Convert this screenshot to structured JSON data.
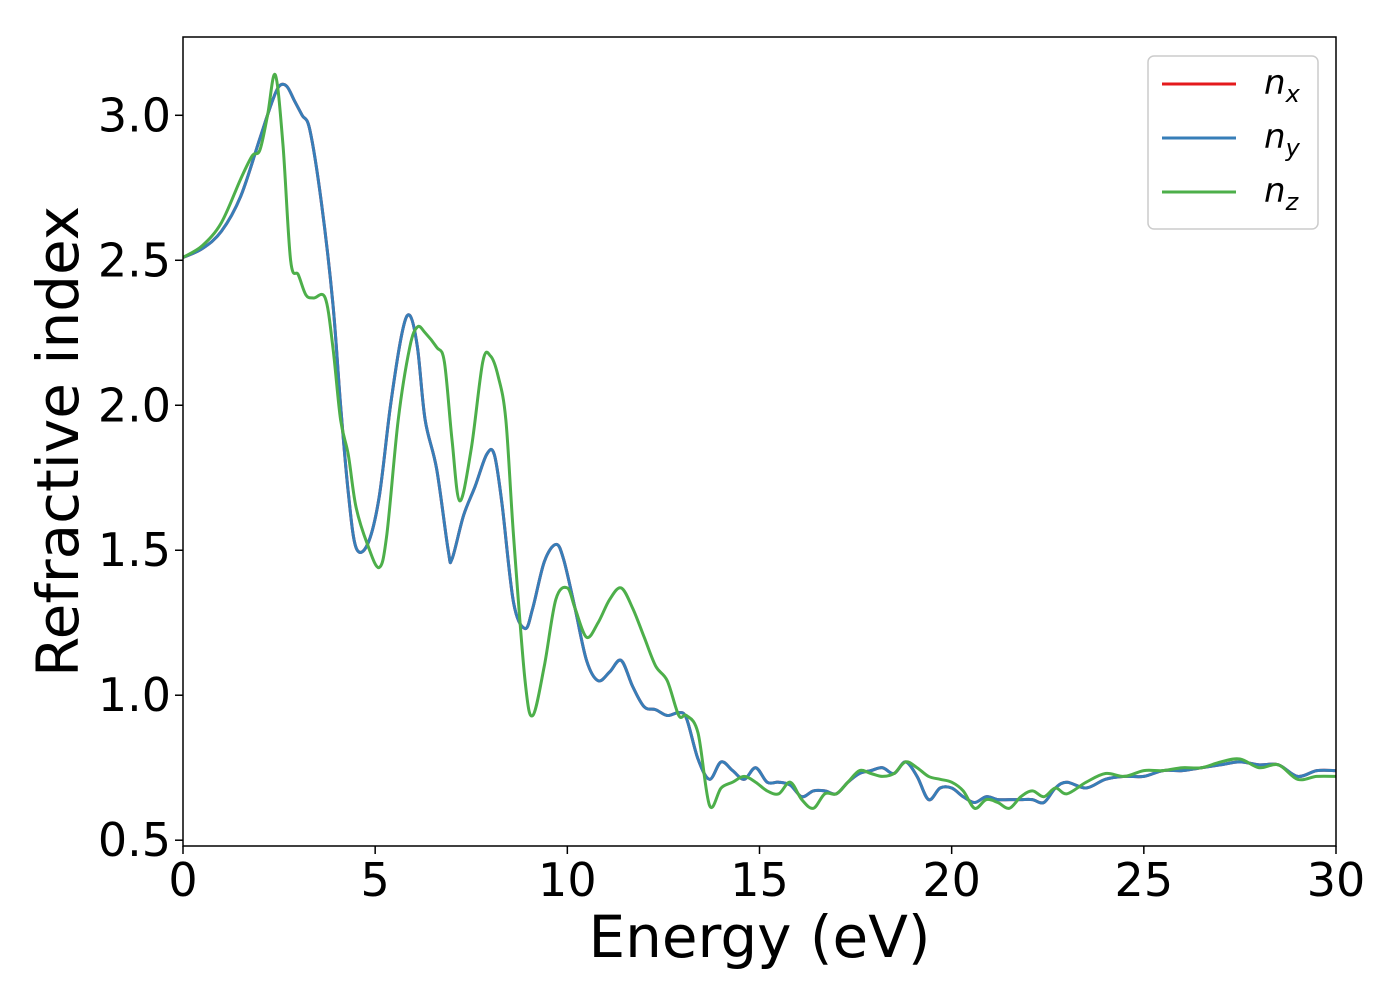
{
  "chart_data": {
    "type": "line",
    "title": "",
    "xlabel": "Energy (eV)",
    "ylabel": "Refractive index",
    "xlim": [
      0,
      30
    ],
    "ylim": [
      0.48,
      3.27
    ],
    "xticks": [
      0,
      5,
      10,
      15,
      20,
      25,
      30
    ],
    "xtick_labels": [
      "0",
      "5",
      "10",
      "15",
      "20",
      "25",
      "30"
    ],
    "yticks": [
      0.5,
      1.0,
      1.5,
      2.0,
      2.5,
      3.0
    ],
    "ytick_labels": [
      "0.5",
      "1.0",
      "1.5",
      "2.0",
      "2.5",
      "3.0"
    ],
    "grid": false,
    "legend_position": "top-right",
    "series": [
      {
        "name": "n_x",
        "legend_main": "n",
        "legend_sub": "x",
        "color": "#e41a1c",
        "x": [
          0,
          0.5,
          1.0,
          1.5,
          2.0,
          2.3,
          2.5,
          2.7,
          2.9,
          3.1,
          3.3,
          3.6,
          3.9,
          4.1,
          4.3,
          4.5,
          4.8,
          5.1,
          5.4,
          5.7,
          5.9,
          6.1,
          6.3,
          6.6,
          6.9,
          7.0,
          7.3,
          7.6,
          7.9,
          8.1,
          8.3,
          8.6,
          8.9,
          9.1,
          9.4,
          9.7,
          9.9,
          10.2,
          10.5,
          10.8,
          11.1,
          11.4,
          11.7,
          12.0,
          12.3,
          12.6,
          12.9,
          13.1,
          13.4,
          13.7,
          14.0,
          14.3,
          14.6,
          14.9,
          15.2,
          15.5,
          15.8,
          16.1,
          16.4,
          16.7,
          17.0,
          17.3,
          17.6,
          17.9,
          18.2,
          18.5,
          18.8,
          19.1,
          19.4,
          19.7,
          20.0,
          20.3,
          20.6,
          20.9,
          21.2,
          21.5,
          21.8,
          22.1,
          22.4,
          22.7,
          23.0,
          23.5,
          24.0,
          24.5,
          25.0,
          25.5,
          26.0,
          26.5,
          27.0,
          27.5,
          28.0,
          28.5,
          29.0,
          29.5,
          30.0
        ],
        "y": [
          2.51,
          2.54,
          2.6,
          2.72,
          2.92,
          3.04,
          3.1,
          3.1,
          3.05,
          3.0,
          2.95,
          2.7,
          2.35,
          2.0,
          1.7,
          1.51,
          1.52,
          1.68,
          2.0,
          2.25,
          2.31,
          2.2,
          1.95,
          1.78,
          1.5,
          1.47,
          1.62,
          1.72,
          1.83,
          1.83,
          1.66,
          1.32,
          1.23,
          1.3,
          1.46,
          1.52,
          1.47,
          1.3,
          1.12,
          1.05,
          1.08,
          1.12,
          1.03,
          0.96,
          0.95,
          0.93,
          0.94,
          0.92,
          0.78,
          0.71,
          0.77,
          0.74,
          0.71,
          0.75,
          0.7,
          0.7,
          0.69,
          0.65,
          0.67,
          0.67,
          0.66,
          0.7,
          0.73,
          0.74,
          0.75,
          0.73,
          0.77,
          0.72,
          0.64,
          0.68,
          0.68,
          0.65,
          0.63,
          0.65,
          0.64,
          0.64,
          0.64,
          0.64,
          0.63,
          0.68,
          0.7,
          0.68,
          0.71,
          0.72,
          0.72,
          0.74,
          0.74,
          0.75,
          0.76,
          0.77,
          0.76,
          0.76,
          0.72,
          0.74,
          0.74
        ]
      },
      {
        "name": "n_y",
        "legend_main": "n",
        "legend_sub": "y",
        "color": "#377eb8",
        "x": [
          0,
          0.5,
          1.0,
          1.5,
          2.0,
          2.3,
          2.5,
          2.7,
          2.9,
          3.1,
          3.3,
          3.6,
          3.9,
          4.1,
          4.3,
          4.5,
          4.8,
          5.1,
          5.4,
          5.7,
          5.9,
          6.1,
          6.3,
          6.6,
          6.9,
          7.0,
          7.3,
          7.6,
          7.9,
          8.1,
          8.3,
          8.6,
          8.9,
          9.1,
          9.4,
          9.7,
          9.9,
          10.2,
          10.5,
          10.8,
          11.1,
          11.4,
          11.7,
          12.0,
          12.3,
          12.6,
          12.9,
          13.1,
          13.4,
          13.7,
          14.0,
          14.3,
          14.6,
          14.9,
          15.2,
          15.5,
          15.8,
          16.1,
          16.4,
          16.7,
          17.0,
          17.3,
          17.6,
          17.9,
          18.2,
          18.5,
          18.8,
          19.1,
          19.4,
          19.7,
          20.0,
          20.3,
          20.6,
          20.9,
          21.2,
          21.5,
          21.8,
          22.1,
          22.4,
          22.7,
          23.0,
          23.5,
          24.0,
          24.5,
          25.0,
          25.5,
          26.0,
          26.5,
          27.0,
          27.5,
          28.0,
          28.5,
          29.0,
          29.5,
          30.0
        ],
        "y": [
          2.51,
          2.54,
          2.6,
          2.72,
          2.92,
          3.04,
          3.1,
          3.1,
          3.05,
          3.0,
          2.95,
          2.7,
          2.35,
          2.0,
          1.7,
          1.51,
          1.52,
          1.68,
          2.0,
          2.25,
          2.31,
          2.2,
          1.95,
          1.78,
          1.5,
          1.47,
          1.62,
          1.72,
          1.83,
          1.83,
          1.66,
          1.32,
          1.23,
          1.3,
          1.46,
          1.52,
          1.47,
          1.3,
          1.12,
          1.05,
          1.08,
          1.12,
          1.03,
          0.96,
          0.95,
          0.93,
          0.94,
          0.92,
          0.78,
          0.71,
          0.77,
          0.74,
          0.71,
          0.75,
          0.7,
          0.7,
          0.69,
          0.65,
          0.67,
          0.67,
          0.66,
          0.7,
          0.73,
          0.74,
          0.75,
          0.73,
          0.77,
          0.72,
          0.64,
          0.68,
          0.68,
          0.65,
          0.63,
          0.65,
          0.64,
          0.64,
          0.64,
          0.64,
          0.63,
          0.68,
          0.7,
          0.68,
          0.71,
          0.72,
          0.72,
          0.74,
          0.74,
          0.75,
          0.76,
          0.77,
          0.76,
          0.76,
          0.72,
          0.74,
          0.74
        ]
      },
      {
        "name": "n_z",
        "legend_main": "n",
        "legend_sub": "z",
        "color": "#4daf4a",
        "x": [
          0,
          0.5,
          1.0,
          1.5,
          1.8,
          2.0,
          2.2,
          2.4,
          2.6,
          2.8,
          3.0,
          3.2,
          3.4,
          3.7,
          3.9,
          4.1,
          4.3,
          4.5,
          4.8,
          5.1,
          5.3,
          5.6,
          5.9,
          6.1,
          6.3,
          6.6,
          6.8,
          7.0,
          7.2,
          7.5,
          7.8,
          8.0,
          8.2,
          8.4,
          8.6,
          8.9,
          9.1,
          9.4,
          9.7,
          10.0,
          10.2,
          10.5,
          10.8,
          11.1,
          11.4,
          11.7,
          12.0,
          12.3,
          12.6,
          12.9,
          13.1,
          13.4,
          13.7,
          14.0,
          14.3,
          14.6,
          14.9,
          15.2,
          15.5,
          15.8,
          16.1,
          16.4,
          16.7,
          17.0,
          17.3,
          17.6,
          17.9,
          18.2,
          18.5,
          18.8,
          19.1,
          19.4,
          19.7,
          20.0,
          20.3,
          20.6,
          20.9,
          21.2,
          21.5,
          21.8,
          22.1,
          22.4,
          22.7,
          23.0,
          23.5,
          24.0,
          24.5,
          25.0,
          25.5,
          26.0,
          26.5,
          27.0,
          27.5,
          28.0,
          28.5,
          29.0,
          29.5,
          30.0
        ],
        "y": [
          2.51,
          2.55,
          2.63,
          2.78,
          2.86,
          2.88,
          3.0,
          3.14,
          2.9,
          2.5,
          2.45,
          2.38,
          2.37,
          2.37,
          2.2,
          1.95,
          1.83,
          1.65,
          1.52,
          1.44,
          1.55,
          1.95,
          2.2,
          2.27,
          2.25,
          2.2,
          2.15,
          1.88,
          1.67,
          1.85,
          2.15,
          2.17,
          2.1,
          1.95,
          1.55,
          1.05,
          0.93,
          1.1,
          1.33,
          1.37,
          1.3,
          1.2,
          1.25,
          1.33,
          1.37,
          1.3,
          1.2,
          1.1,
          1.05,
          0.93,
          0.93,
          0.87,
          0.62,
          0.68,
          0.7,
          0.72,
          0.7,
          0.67,
          0.66,
          0.7,
          0.64,
          0.61,
          0.66,
          0.66,
          0.7,
          0.74,
          0.73,
          0.72,
          0.73,
          0.77,
          0.75,
          0.72,
          0.71,
          0.7,
          0.67,
          0.61,
          0.64,
          0.63,
          0.61,
          0.65,
          0.67,
          0.65,
          0.68,
          0.66,
          0.7,
          0.73,
          0.72,
          0.74,
          0.74,
          0.75,
          0.75,
          0.77,
          0.78,
          0.75,
          0.76,
          0.71,
          0.72,
          0.72
        ]
      }
    ]
  }
}
